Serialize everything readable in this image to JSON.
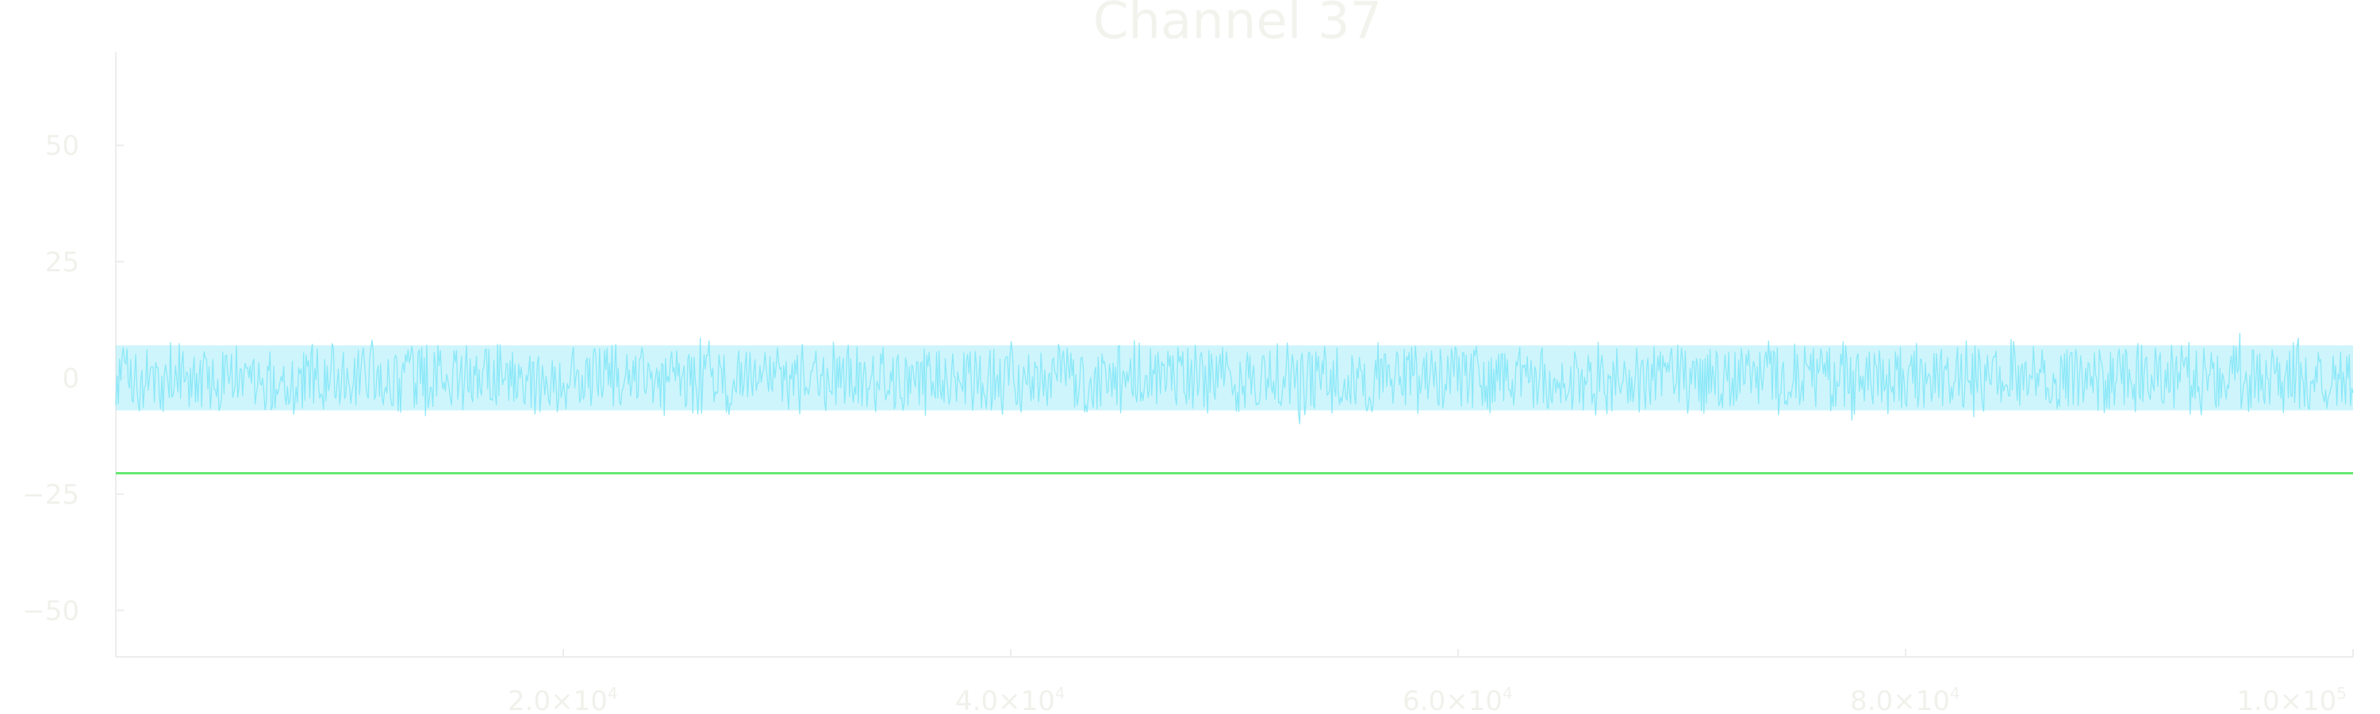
{
  "chart_data": {
    "type": "line",
    "title": "Channel 37",
    "xlabel": "",
    "ylabel": "",
    "xlim": [
      0,
      100000
    ],
    "ylim": [
      -60,
      70
    ],
    "grid": false,
    "legend": "none",
    "x_ticks": [
      {
        "value": 20000,
        "mantissa": "2.0",
        "exponent": "4"
      },
      {
        "value": 40000,
        "mantissa": "4.0",
        "exponent": "4"
      },
      {
        "value": 60000,
        "mantissa": "6.0",
        "exponent": "4"
      },
      {
        "value": 80000,
        "mantissa": "8.0",
        "exponent": "4"
      },
      {
        "value": 100000,
        "mantissa": "1.0",
        "exponent": "5"
      }
    ],
    "y_ticks": [
      {
        "value": 50,
        "label": "50"
      },
      {
        "value": 25,
        "label": "25"
      },
      {
        "value": 0,
        "label": "0"
      },
      {
        "value": -25,
        "label": "−25"
      },
      {
        "value": -50,
        "label": "−50"
      }
    ],
    "series": [
      {
        "kind": "signal",
        "color": "#8be8f8",
        "x_range": [
          0,
          100000
        ],
        "samples": 100000,
        "center": 0,
        "typical_min": -7,
        "typical_max": 7,
        "observed_min": -13,
        "observed_max": 12
      },
      {
        "kind": "threshold",
        "color": "#65e872",
        "y": -20.5
      }
    ]
  }
}
